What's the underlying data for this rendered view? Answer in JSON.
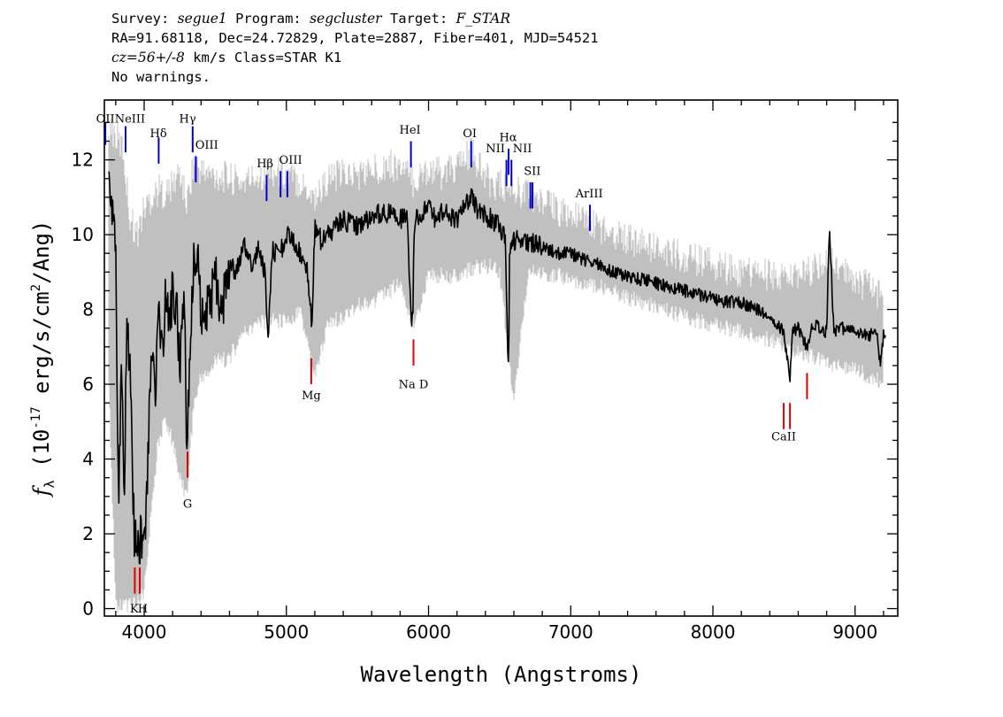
{
  "header": {
    "survey_label": "Survey:",
    "survey": "segue1",
    "program_label": "Program:",
    "program": "segcluster",
    "target_label": "Target:",
    "target": "F_STAR",
    "line2": "RA=91.68118, Dec=24.72829, Plate=2887, Fiber=401, MJD=54521",
    "cz": "cz=56+/-8",
    "cz_rest": "km/s Class=STAR K1",
    "warnings": "No warnings."
  },
  "chart_data": {
    "type": "line",
    "title": "",
    "xlabel": "Wavelength (Angstroms)",
    "ylabel_parts": {
      "sym": "f",
      "sub": "λ",
      "open": "(10",
      "exp1": "-17",
      "mid": "erg/s/cm",
      "exp2": "2",
      "close": "/Ang)"
    },
    "xlim": [
      3720,
      9300
    ],
    "ylim": [
      -0.2,
      13.6
    ],
    "xticks": [
      4000,
      5000,
      6000,
      7000,
      8000,
      9000
    ],
    "yticks": [
      0,
      2,
      4,
      6,
      8,
      10,
      12
    ],
    "grid": false,
    "series": [
      {
        "style": "gray error envelope (upper/lower)",
        "color": "#c0c0c0",
        "x": [
          3750,
          3800,
          3850,
          3900,
          3950,
          4000,
          4050,
          4100,
          4150,
          4200,
          4250,
          4300,
          4350,
          4400,
          4450,
          4500,
          4600,
          4700,
          4800,
          4900,
          5000,
          5100,
          5200,
          5300,
          5400,
          5500,
          5600,
          5700,
          5800,
          5900,
          6000,
          6100,
          6200,
          6300,
          6400,
          6500,
          6600,
          6700,
          6800,
          6900,
          7000,
          7200,
          7400,
          7600,
          7800,
          8000,
          8200,
          8400,
          8600,
          8800,
          9000,
          9200
        ],
        "upper": [
          13.0,
          12.6,
          12.3,
          10.5,
          10.0,
          10.7,
          11.0,
          11.2,
          11.1,
          11.3,
          11.7,
          10.8,
          12.0,
          11.7,
          11.6,
          11.6,
          11.5,
          11.4,
          11.6,
          11.7,
          11.6,
          11.4,
          11.0,
          11.5,
          11.6,
          11.6,
          11.7,
          11.9,
          11.8,
          11.4,
          11.8,
          11.6,
          11.8,
          12.2,
          11.5,
          11.3,
          11.2,
          11.1,
          10.8,
          10.7,
          10.5,
          10.2,
          9.9,
          9.6,
          9.4,
          9.2,
          9.0,
          8.9,
          8.8,
          9.3,
          8.8,
          8.4
        ],
        "lower": [
          6.0,
          0.1,
          0.1,
          0.1,
          0.1,
          0.5,
          2.5,
          4.5,
          5.0,
          4.5,
          3.5,
          3.0,
          5.5,
          6.2,
          6.3,
          6.6,
          6.7,
          7.4,
          7.6,
          7.7,
          7.7,
          7.9,
          6.2,
          7.7,
          7.8,
          8.1,
          8.2,
          8.4,
          8.7,
          7.5,
          8.9,
          8.9,
          8.9,
          9.1,
          9.2,
          9.0,
          5.5,
          9.0,
          9.0,
          8.9,
          8.8,
          8.6,
          8.3,
          8.1,
          7.8,
          7.6,
          7.4,
          7.2,
          6.9,
          6.6,
          6.4,
          6.0
        ]
      },
      {
        "style": "black flux (smoothed overview)",
        "color": "#000000",
        "x": [
          3750,
          3800,
          3820,
          3840,
          3860,
          3880,
          3900,
          3930,
          3960,
          3980,
          4000,
          4030,
          4050,
          4080,
          4100,
          4130,
          4150,
          4180,
          4200,
          4230,
          4250,
          4280,
          4300,
          4330,
          4350,
          4380,
          4400,
          4450,
          4500,
          4550,
          4600,
          4650,
          4700,
          4750,
          4800,
          4850,
          4870,
          4900,
          4950,
          5000,
          5050,
          5100,
          5150,
          5180,
          5200,
          5250,
          5300,
          5400,
          5500,
          5600,
          5700,
          5800,
          5850,
          5880,
          5890,
          5900,
          5950,
          6000,
          6050,
          6100,
          6150,
          6200,
          6250,
          6300,
          6350,
          6400,
          6450,
          6500,
          6540,
          6560,
          6563,
          6570,
          6600,
          6650,
          6700,
          6800,
          6900,
          7000,
          7100,
          7200,
          7300,
          7400,
          7500,
          7600,
          7700,
          7800,
          7900,
          8000,
          8100,
          8200,
          8300,
          8400,
          8450,
          8498,
          8542,
          8560,
          8600,
          8662,
          8700,
          8750,
          8800,
          8820,
          8850,
          8900,
          9000,
          9100,
          9150,
          9180,
          9200,
          9220
        ],
        "values": [
          11.6,
          9.5,
          2.5,
          7.0,
          3.0,
          7.8,
          6.5,
          2.0,
          1.5,
          2.0,
          1.4,
          4.5,
          7.0,
          6.0,
          8.0,
          7.0,
          8.5,
          7.5,
          8.5,
          8.0,
          6.5,
          8.8,
          4.1,
          7.5,
          9.6,
          9.2,
          7.8,
          8.0,
          8.8,
          8.0,
          9.2,
          9.0,
          9.8,
          9.2,
          9.6,
          9.0,
          7.2,
          9.6,
          9.4,
          10.0,
          9.8,
          9.5,
          9.0,
          7.5,
          10.2,
          9.8,
          10.0,
          10.4,
          10.2,
          10.5,
          10.6,
          10.4,
          10.5,
          7.6,
          8.0,
          10.4,
          10.6,
          10.8,
          10.4,
          10.6,
          10.5,
          10.4,
          10.7,
          11.0,
          10.6,
          10.5,
          10.4,
          10.2,
          10.0,
          6.3,
          6.5,
          9.5,
          9.8,
          9.9,
          9.8,
          9.7,
          9.5,
          9.5,
          9.3,
          9.2,
          9.0,
          8.9,
          8.8,
          8.7,
          8.6,
          8.5,
          8.4,
          8.3,
          8.2,
          8.2,
          8.0,
          7.8,
          7.6,
          7.4,
          6.2,
          7.4,
          7.5,
          7.0,
          7.6,
          7.5,
          7.4,
          10.3,
          7.4,
          7.5,
          7.4,
          7.3,
          7.4,
          6.5,
          7.3,
          7.2
        ]
      }
    ],
    "line_markers": [
      {
        "label": "OII",
        "x": 3727,
        "kind": "emission",
        "color": "#0000cc"
      },
      {
        "label": "NeIII",
        "x": 3869,
        "kind": "emission",
        "color": "#0000cc"
      },
      {
        "label": "Hδ",
        "x": 4102,
        "kind": "emission",
        "color": "#0000cc"
      },
      {
        "label": "Hγ",
        "x": 4341,
        "kind": "emission",
        "color": "#0000cc"
      },
      {
        "label": "OIII",
        "x": 4363,
        "kind": "emission",
        "color": "#0000cc"
      },
      {
        "label": "Hβ",
        "x": 4861,
        "kind": "emission",
        "color": "#0000cc"
      },
      {
        "label": "OIII",
        "x": 4959,
        "kind": "emission",
        "color": "#0000cc"
      },
      {
        "label": "OIII",
        "x": 5007,
        "kind": "emission",
        "color": "#0000cc"
      },
      {
        "label": "HeI",
        "x": 5876,
        "kind": "emission",
        "color": "#0000cc"
      },
      {
        "label": "OI",
        "x": 6300,
        "kind": "emission",
        "color": "#0000cc"
      },
      {
        "label": "NII",
        "x": 6548,
        "kind": "emission",
        "color": "#0000cc"
      },
      {
        "label": "Hα",
        "x": 6563,
        "kind": "emission",
        "color": "#0000cc"
      },
      {
        "label": "NII",
        "x": 6583,
        "kind": "emission",
        "color": "#0000cc"
      },
      {
        "label": "SII",
        "x": 6716,
        "kind": "emission",
        "color": "#0000cc"
      },
      {
        "label": "SII",
        "x": 6731,
        "kind": "emission",
        "color": "#0000cc"
      },
      {
        "label": "ArIII",
        "x": 7135,
        "kind": "emission",
        "color": "#0000cc"
      },
      {
        "label": "K",
        "x": 3934,
        "kind": "absorption",
        "color": "#dd0000"
      },
      {
        "label": "H",
        "x": 3969,
        "kind": "absorption",
        "color": "#dd0000"
      },
      {
        "label": "G",
        "x": 4305,
        "kind": "absorption",
        "color": "#dd0000"
      },
      {
        "label": "Mg",
        "x": 5175,
        "kind": "absorption",
        "color": "#dd0000"
      },
      {
        "label": "Na D",
        "x": 5894,
        "kind": "absorption",
        "color": "#dd0000"
      },
      {
        "label": "CaII",
        "x": 8498,
        "kind": "absorption",
        "color": "#dd0000"
      },
      {
        "label": "CaII",
        "x": 8542,
        "kind": "absorption",
        "color": "#dd0000"
      },
      {
        "label": "CaII",
        "x": 8662,
        "kind": "absorption",
        "color": "#dd0000"
      }
    ],
    "line_labels_shown": [
      "OII",
      "NeIII",
      "Hδ",
      "Hγ",
      "OIII",
      "Hβ",
      "OIII",
      "HeI",
      "OI",
      "NII",
      "Hα",
      "NII",
      "SII",
      "ArIII",
      "K",
      "H",
      "G",
      "Mg",
      "Na D",
      "CaII"
    ]
  }
}
